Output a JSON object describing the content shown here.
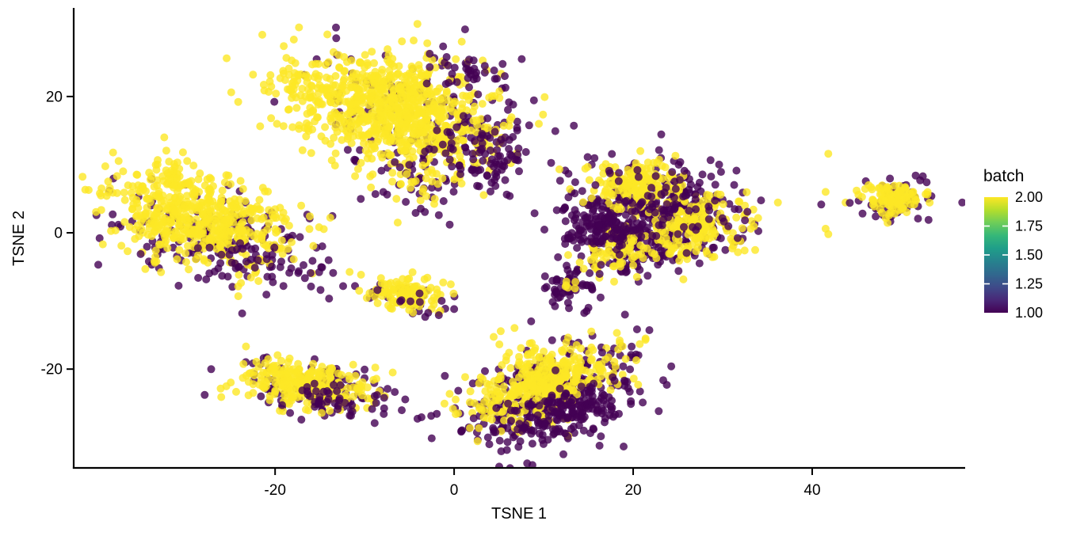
{
  "chart_data": {
    "type": "scatter",
    "title": "",
    "xlabel": "TSNE 1",
    "ylabel": "TSNE 2",
    "x_ticks": [
      -20,
      0,
      20,
      40
    ],
    "x_tick_labels": [
      "-20",
      "0",
      "20",
      "40"
    ],
    "y_ticks": [
      -20,
      0,
      20
    ],
    "y_tick_labels": [
      "-20",
      "0",
      "20"
    ],
    "x_range": [
      -42.5,
      57
    ],
    "y_range": [
      -34.5,
      33
    ],
    "grid": false,
    "legend": {
      "title": "batch",
      "position": "right",
      "type": "colorbar",
      "scale_min": 1.0,
      "scale_max": 2.0,
      "tick_values": [
        2.0,
        1.75,
        1.5,
        1.25,
        1.0
      ],
      "tick_labels": [
        "2.00",
        "1.75",
        "1.50",
        "1.25",
        "1.00"
      ],
      "gradient_bottom_to_top": [
        "#440154",
        "#482878",
        "#3E4A89",
        "#31688E",
        "#26828E",
        "#1F9E89",
        "#35B779",
        "#6DCD59",
        "#B4DE2C",
        "#FDE725"
      ]
    },
    "batches": {
      "1": "#440154",
      "2": "#FDE725"
    },
    "point_style": {
      "radius": 5,
      "opacity": 0.8
    },
    "seed": 42,
    "clusters": [
      {
        "name": "left",
        "components": [
          {
            "batch": 1,
            "n": 175,
            "cx": -26.0,
            "cy": -1.5,
            "sx": 6.5,
            "sy": 3.2,
            "rot": -20
          },
          {
            "batch": 2,
            "n": 520,
            "cx": -28.5,
            "cy": 2.0,
            "sx": 5.2,
            "sy": 3.0,
            "rot": -20
          },
          {
            "batch": 2,
            "n": 28,
            "cx": -31.0,
            "cy": 8.5,
            "sx": 1.3,
            "sy": 1.3,
            "rot": 0
          },
          {
            "batch": 1,
            "n": 30,
            "cx": -22.0,
            "cy": -4.5,
            "sx": 4.5,
            "sy": 1.6,
            "rot": -15
          }
        ]
      },
      {
        "name": "top-center",
        "components": [
          {
            "batch": 1,
            "n": 150,
            "cx": -4.0,
            "cy": 17.0,
            "sx": 7.2,
            "sy": 4.8,
            "rot": -18
          },
          {
            "batch": 2,
            "n": 780,
            "cx": -6.5,
            "cy": 18.0,
            "sx": 5.6,
            "sy": 3.9,
            "rot": -18
          },
          {
            "batch": 2,
            "n": 50,
            "cx": -17.5,
            "cy": 21.5,
            "sx": 2.2,
            "sy": 1.6,
            "rot": -20
          },
          {
            "batch": 1,
            "n": 55,
            "cx": 4.5,
            "cy": 10.5,
            "sx": 2.2,
            "sy": 2.0,
            "rot": 0
          },
          {
            "batch": 1,
            "n": 35,
            "cx": 2.0,
            "cy": 23.5,
            "sx": 2.8,
            "sy": 1.5,
            "rot": -10
          },
          {
            "batch": 1,
            "n": 30,
            "cx": 1.5,
            "cy": 13.5,
            "sx": 3.5,
            "sy": 2.5,
            "rot": 0
          },
          {
            "batch": 1,
            "n": 30,
            "cx": -4.0,
            "cy": 6.5,
            "sx": 3.2,
            "sy": 2.2,
            "rot": 0
          },
          {
            "batch": 2,
            "n": 25,
            "cx": -4.5,
            "cy": 7.0,
            "sx": 2.5,
            "sy": 1.8,
            "rot": 0
          }
        ]
      },
      {
        "name": "small-center",
        "components": [
          {
            "batch": 1,
            "n": 20,
            "cx": -5.0,
            "cy": -9.6,
            "sx": 2.6,
            "sy": 1.4,
            "rot": -8
          },
          {
            "batch": 2,
            "n": 120,
            "cx": -5.5,
            "cy": -9.0,
            "sx": 2.2,
            "sy": 1.2,
            "rot": -8
          },
          {
            "batch": 1,
            "n": 10,
            "cx": -4.0,
            "cy": -10.2,
            "sx": 2.2,
            "sy": 1.0,
            "rot": -8
          }
        ]
      },
      {
        "name": "bottom-left",
        "components": [
          {
            "batch": 1,
            "n": 90,
            "cx": -15.8,
            "cy": -22.6,
            "sx": 4.4,
            "sy": 2.1,
            "rot": -10
          },
          {
            "batch": 2,
            "n": 270,
            "cx": -16.5,
            "cy": -22.2,
            "sx": 3.6,
            "sy": 1.6,
            "rot": -10
          },
          {
            "batch": 1,
            "n": 40,
            "cx": -13.5,
            "cy": -24.2,
            "sx": 2.8,
            "sy": 1.2,
            "rot": -10
          }
        ]
      },
      {
        "name": "bottom-center",
        "components": [
          {
            "batch": 1,
            "n": 330,
            "cx": 11.0,
            "cy": -24.0,
            "sx": 5.2,
            "sy": 3.2,
            "rot": 25
          },
          {
            "batch": 2,
            "n": 360,
            "cx": 10.0,
            "cy": -22.0,
            "sx": 4.8,
            "sy": 2.2,
            "rot": 30
          },
          {
            "batch": 1,
            "n": 130,
            "cx": 12.0,
            "cy": -26.5,
            "sx": 4.2,
            "sy": 2.0,
            "rot": 25
          },
          {
            "batch": 2,
            "n": 14,
            "cx": 7.0,
            "cy": -16.5,
            "sx": 1.8,
            "sy": 1.2,
            "rot": 0
          }
        ]
      },
      {
        "name": "small-mid-right",
        "components": [
          {
            "batch": 1,
            "n": 60,
            "cx": 12.8,
            "cy": -7.5,
            "sx": 1.5,
            "sy": 1.7,
            "rot": 0
          },
          {
            "batch": 2,
            "n": 6,
            "cx": 12.9,
            "cy": -8.2,
            "sx": 0.9,
            "sy": 0.8,
            "rot": 0
          }
        ]
      },
      {
        "name": "right",
        "components": [
          {
            "batch": 1,
            "n": 380,
            "cx": 22.0,
            "cy": 2.0,
            "sx": 4.8,
            "sy": 3.8,
            "rot": 10
          },
          {
            "batch": 2,
            "n": 170,
            "cx": 20.5,
            "cy": 7.0,
            "sx": 2.6,
            "sy": 1.8,
            "rot": 0
          },
          {
            "batch": 2,
            "n": 190,
            "cx": 27.0,
            "cy": 0.5,
            "sx": 3.0,
            "sy": 2.2,
            "rot": 20
          },
          {
            "batch": 2,
            "n": 70,
            "cx": 18.0,
            "cy": -3.0,
            "sx": 2.0,
            "sy": 1.6,
            "rot": 0
          },
          {
            "batch": 1,
            "n": 110,
            "cx": 22.0,
            "cy": 3.0,
            "sx": 5.0,
            "sy": 3.6,
            "rot": 10
          },
          {
            "batch": 1,
            "n": 70,
            "cx": 17.0,
            "cy": 0.2,
            "sx": 1.8,
            "sy": 1.5,
            "rot": 0
          }
        ]
      },
      {
        "name": "far-right",
        "components": [
          {
            "batch": 1,
            "n": 55,
            "cx": 49.8,
            "cy": 4.6,
            "sx": 2.3,
            "sy": 1.6,
            "rot": 0
          },
          {
            "batch": 2,
            "n": 105,
            "cx": 49.0,
            "cy": 5.0,
            "sx": 1.8,
            "sy": 1.3,
            "rot": 0
          }
        ]
      }
    ],
    "stray_points": [
      {
        "x": 41.8,
        "y": 11.6,
        "batch": 2
      },
      {
        "x": 41.5,
        "y": 6.0,
        "batch": 2
      },
      {
        "x": 44.2,
        "y": 4.4,
        "batch": 1
      },
      {
        "x": 41.5,
        "y": 0.6,
        "batch": 2
      },
      {
        "x": 41.8,
        "y": -0.2,
        "batch": 2
      },
      {
        "x": 20.8,
        "y": 12.0,
        "batch": 2
      },
      {
        "x": 16.4,
        "y": -4.7,
        "batch": 1
      },
      {
        "x": 8.6,
        "y": -13.0,
        "batch": 1
      },
      {
        "x": 14.8,
        "y": -11.5,
        "batch": 1
      },
      {
        "x": -6.3,
        "y": 1.5,
        "batch": 2
      },
      {
        "x": -0.5,
        "y": 1.2,
        "batch": 1
      }
    ]
  }
}
